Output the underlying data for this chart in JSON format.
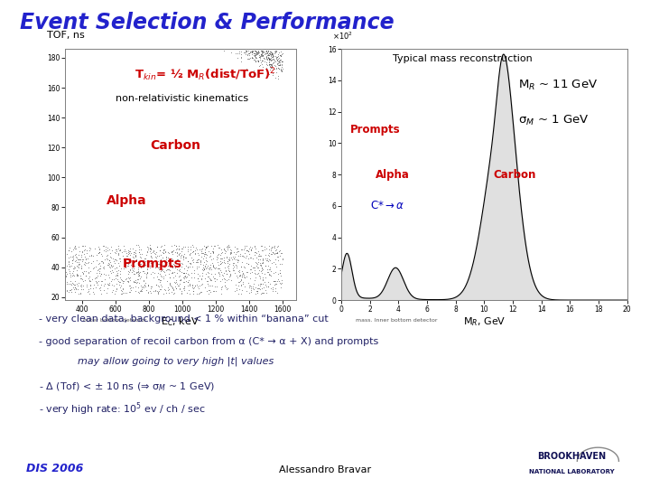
{
  "title": "Event Selection & Performance",
  "title_color": "#2222cc",
  "bg_color": "#ffffff",
  "left_plot_label": "TOF, ns",
  "left_xlabel": "E$_C$, keV",
  "left_formula": "T$_{kin}$= ½ M$_R$(dist/ToF)$^2$",
  "left_sub": "non-relativistic kinematics",
  "right_title": "Typical mass reconstruction",
  "right_xlabel": "M$_R$, GeV",
  "right_mr": "M$_R$ ~ 11 GeV",
  "right_sm": "σ$_M$ ~ 1 GeV",
  "bullet1": "- very clean data, background < 1 % within “banana” cut",
  "bullet2": "- good separation of recoil carbon from α (C* → α + X) and prompts",
  "bullet3": "      may allow going to very high |t| values",
  "bullet4": "- Δ (Tof) < ± 10 ns (⇒ σ$_M$ ~ 1 GeV)",
  "bullet5": "- very high rate: 10$^5$ ev / ch / sec",
  "footer_left": "DIS 2006",
  "footer_center": "Alessandro Bravar",
  "footer_left_color": "#2222cc",
  "red": "#cc0000",
  "blue_label": "#0000bb"
}
